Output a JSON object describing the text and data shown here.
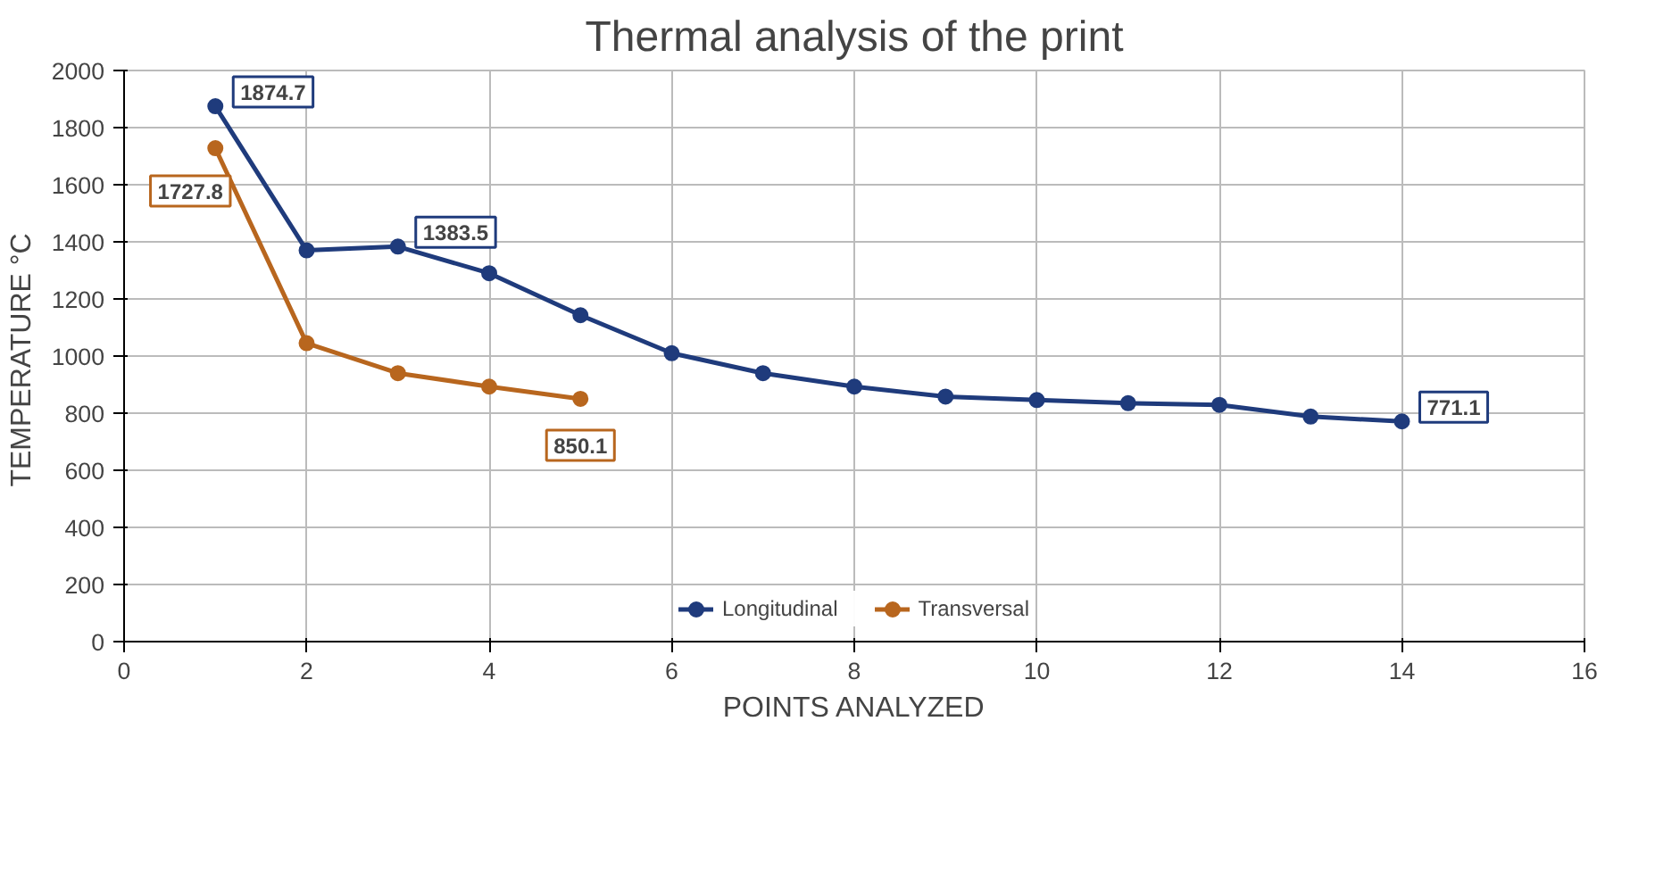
{
  "chart_data": {
    "type": "line",
    "title": "Thermal analysis of the print",
    "xlabel": "POINTS ANALYZED",
    "ylabel": "TEMPERATURE  °C",
    "xlim": [
      0,
      16
    ],
    "xticks": [
      0,
      2,
      4,
      6,
      8,
      10,
      12,
      14,
      16
    ],
    "ylim": [
      0,
      2000
    ],
    "yticks": [
      0,
      200,
      400,
      600,
      800,
      1000,
      1200,
      1400,
      1600,
      1800,
      2000
    ],
    "grid": true,
    "legend": "bottom",
    "marker": "circle",
    "line_style": "solid",
    "series": [
      {
        "name": "Longitudinal",
        "color": "#1f3b7c",
        "x": [
          1,
          2,
          3,
          4,
          5,
          6,
          7,
          8,
          9,
          10,
          11,
          12,
          13,
          14
        ],
        "values": [
          1874.7,
          1370,
          1383.5,
          1290,
          1143,
          1010,
          940,
          893,
          858,
          846,
          835,
          829,
          788,
          771.1
        ],
        "value_labels": [
          "1874.7",
          null,
          "1383.5",
          null,
          null,
          null,
          null,
          null,
          null,
          null,
          null,
          null,
          null,
          "771.1"
        ]
      },
      {
        "name": "Transversal",
        "color": "#b8661e",
        "x": [
          1,
          2,
          3,
          4,
          5
        ],
        "values": [
          1727.8,
          1045,
          940,
          893,
          850.1
        ],
        "value_labels": [
          "1727.8",
          null,
          null,
          null,
          "850.1"
        ]
      }
    ]
  }
}
